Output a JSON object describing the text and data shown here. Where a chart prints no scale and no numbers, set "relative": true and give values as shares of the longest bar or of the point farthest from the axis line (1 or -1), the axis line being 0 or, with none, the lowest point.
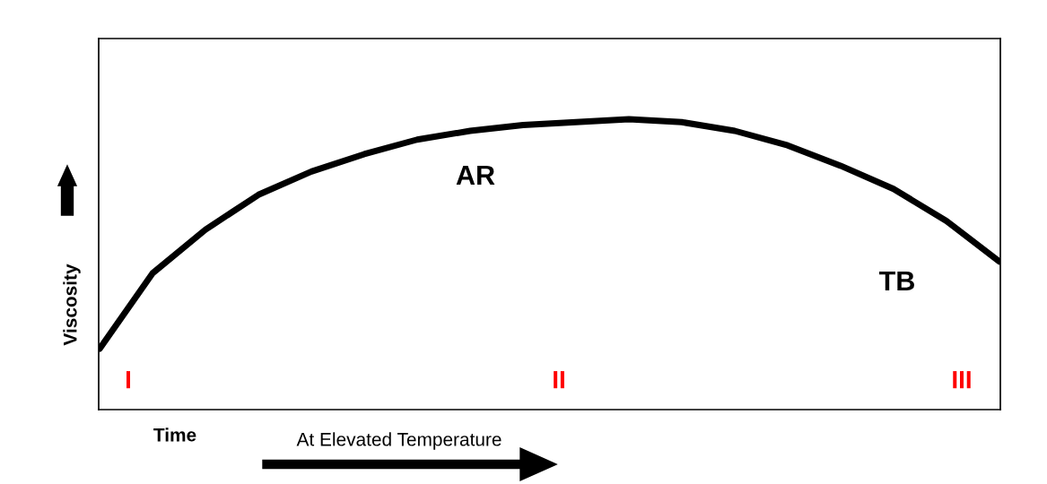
{
  "chart_data": {
    "type": "line",
    "relative": true,
    "ylabel": "Viscosity",
    "xlabel": "Time",
    "categories": [
      null,
      null,
      null,
      null,
      null,
      null,
      null,
      null,
      null,
      null,
      null,
      null,
      null,
      null,
      null,
      null,
      null,
      null
    ],
    "series": [
      {
        "color": "#000000",
        "values": [
          0.21,
          0.47,
          0.62,
          0.74,
          0.82,
          0.88,
          0.93,
          0.96,
          0.98,
          0.99,
          1.0,
          0.99,
          0.96,
          0.91,
          0.84,
          0.76,
          0.65,
          0.51
        ]
      }
    ],
    "annotations": [
      "AR",
      "TB",
      "I",
      "II",
      "III",
      "At Elevated Temperature"
    ],
    "legend": false,
    "marker": "none",
    "line_style": "solid"
  }
}
